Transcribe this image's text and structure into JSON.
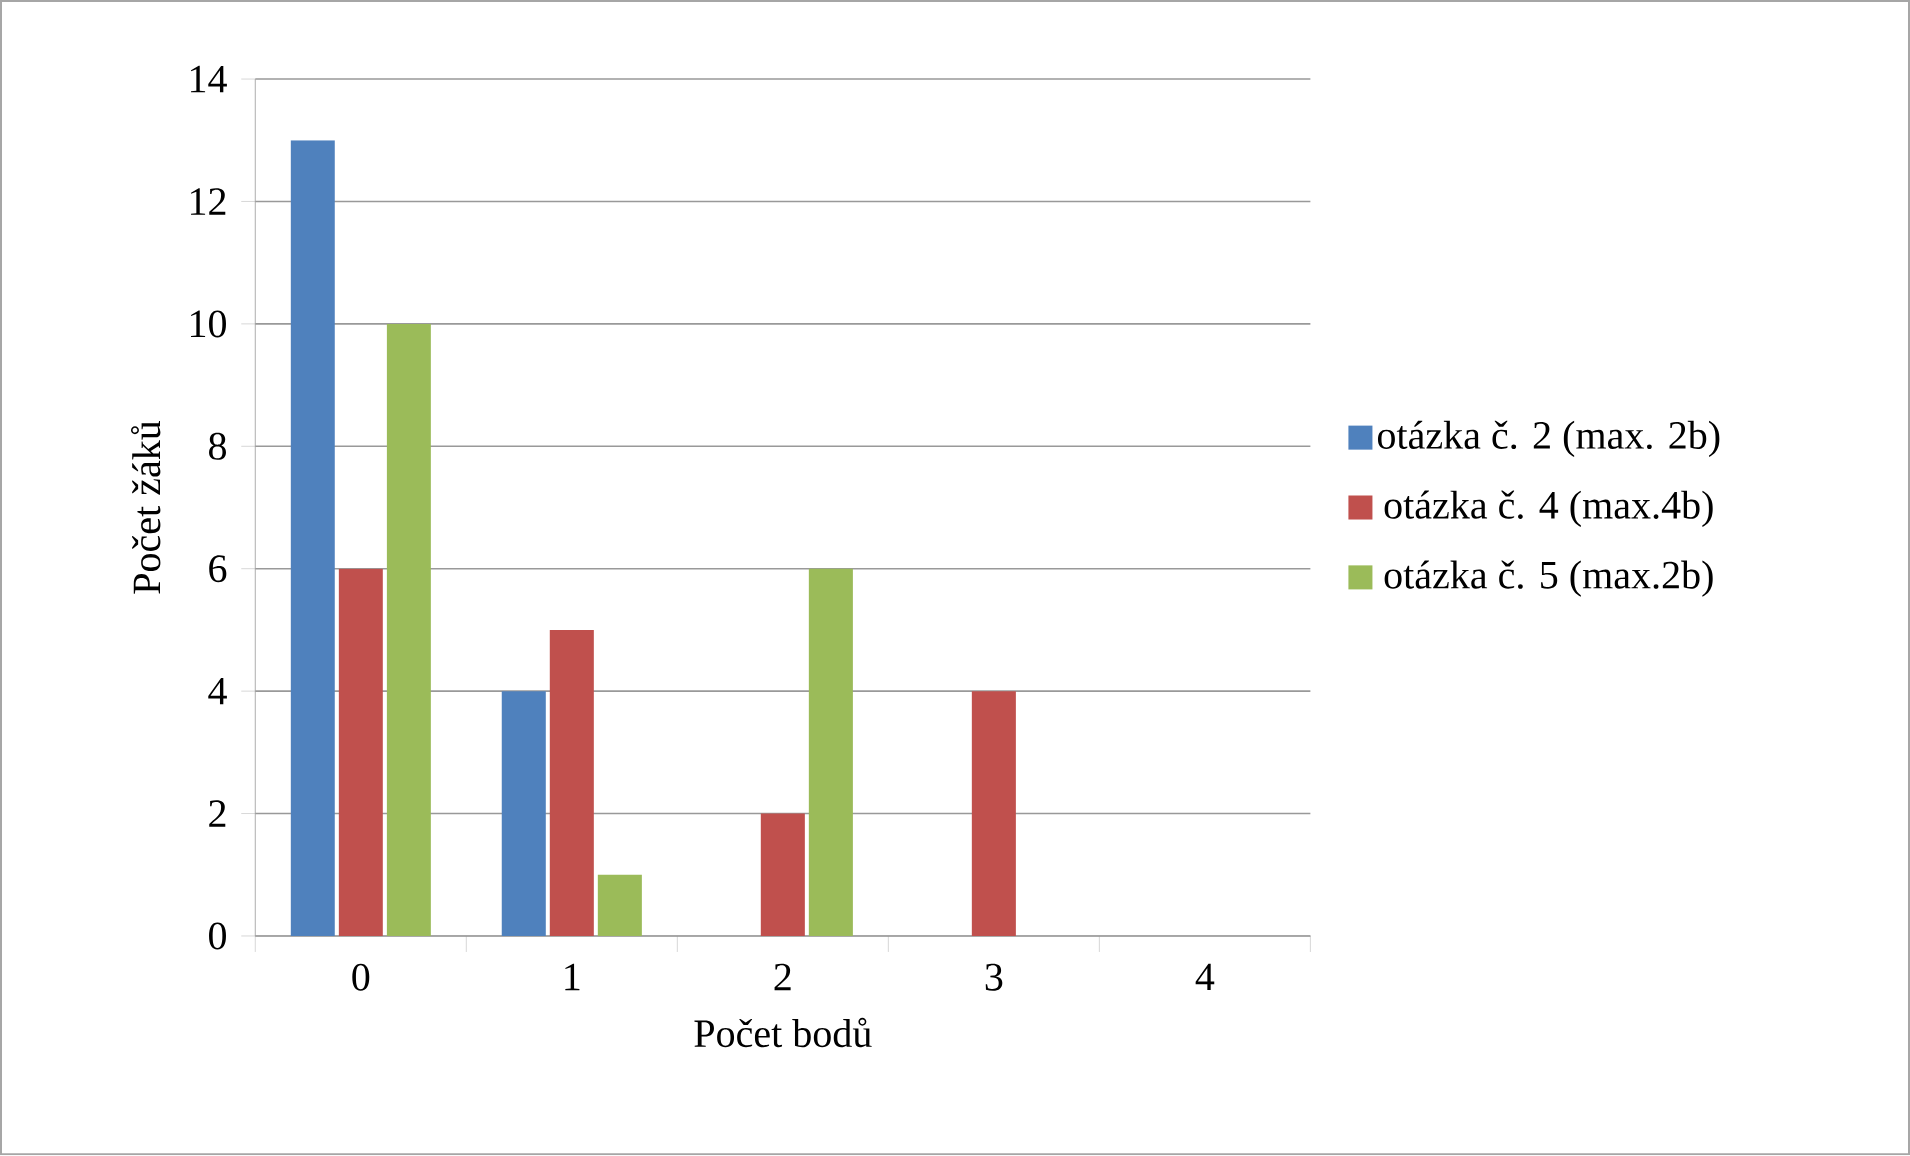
{
  "chart_data": {
    "type": "bar",
    "xlabel": "Počet bodů",
    "ylabel": "Počet žáků",
    "categories": [
      "0",
      "1",
      "2",
      "3",
      "4"
    ],
    "series": [
      {
        "name": "otázka č. 2 (max. 2b)",
        "color": "#4f81bd",
        "values": [
          13,
          4,
          0,
          0,
          0
        ]
      },
      {
        "name": "otázka č. 4 (max.4b)",
        "color": "#c0504d",
        "values": [
          6,
          5,
          2,
          4,
          0
        ]
      },
      {
        "name": "otázka č. 5 (max.2b)",
        "color": "#9bbb59",
        "values": [
          10,
          1,
          6,
          0,
          0
        ]
      }
    ],
    "ylim": [
      0,
      14
    ],
    "yticks": [
      0,
      2,
      4,
      6,
      8,
      10,
      12,
      14
    ],
    "grid": "y",
    "legend": "right"
  }
}
